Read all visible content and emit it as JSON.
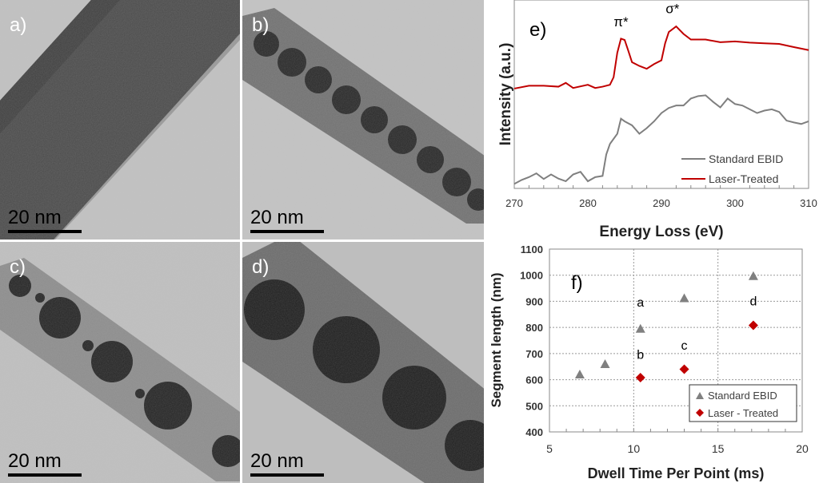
{
  "panels": [
    {
      "label": "a)",
      "scale_bar": "20 nm"
    },
    {
      "label": "b)",
      "scale_bar": "20 nm"
    },
    {
      "label": "c)",
      "scale_bar": "20 nm"
    },
    {
      "label": "d)",
      "scale_bar": "20 nm"
    }
  ],
  "chart_data": [
    {
      "type": "line",
      "panel_label": "e)",
      "xlabel": "Energy Loss (eV)",
      "ylabel": "Intensity (a.u.)",
      "xlim": [
        270,
        310
      ],
      "ylim": [
        0,
        100
      ],
      "xticks": [
        "270",
        "280",
        "290",
        "300",
        "310"
      ],
      "annotations": [
        {
          "text": "π*",
          "x": 284.5,
          "y": 86
        },
        {
          "text": "σ*",
          "x": 291.5,
          "y": 93
        }
      ],
      "legend_position": "bottom-right",
      "series": [
        {
          "name": "Standard EBID",
          "color": "#7f7f7f",
          "x": [
            270,
            271,
            272,
            273,
            274,
            275,
            276,
            277,
            278,
            279,
            280,
            281,
            282,
            282.5,
            283,
            284,
            284.5,
            285,
            286,
            287,
            288,
            289,
            290,
            291,
            292,
            293,
            294,
            295,
            296,
            297,
            298,
            299,
            300,
            301,
            302,
            303,
            304,
            305,
            306,
            307,
            308,
            309,
            310
          ],
          "y": [
            2.4,
            4.5,
            6,
            8,
            5,
            7.4,
            5.2,
            3.8,
            7.4,
            8.8,
            3.8,
            6,
            6.6,
            18,
            23.6,
            29,
            37,
            35.6,
            33.5,
            29,
            32,
            35.6,
            40,
            42.7,
            44,
            44,
            47.7,
            49,
            49.4,
            46,
            43,
            47.7,
            44.8,
            44,
            42,
            40,
            41.3,
            42,
            40.6,
            36,
            35,
            34.2,
            35.6
          ]
        },
        {
          "name": "Laser-Treated",
          "color": "#c00000",
          "x": [
            270,
            272,
            274,
            276,
            277,
            278,
            280,
            281,
            282,
            283,
            283.5,
            284,
            284.5,
            285,
            285.5,
            286,
            287,
            288,
            289,
            290,
            290.5,
            291,
            292,
            293,
            294,
            296,
            298,
            300,
            302,
            304,
            306,
            308,
            310
          ],
          "y": [
            53,
            54.5,
            54.5,
            54,
            56,
            53.3,
            55,
            53.3,
            54,
            55,
            59,
            72,
            79.5,
            78.8,
            73,
            67,
            65,
            63.5,
            66,
            68,
            77,
            83,
            86,
            82,
            79,
            79,
            77.6,
            78,
            77.4,
            77,
            76.7,
            75,
            73.4
          ]
        }
      ]
    },
    {
      "type": "scatter",
      "panel_label": "f)",
      "xlabel": "Dwell Time Per Point (ms)",
      "ylabel": "Segment length (nm)",
      "xlim": [
        5,
        20
      ],
      "ylim": [
        400,
        1100
      ],
      "xticks": [
        "5",
        "10",
        "15",
        "20"
      ],
      "yticks": [
        "400",
        "500",
        "600",
        "700",
        "800",
        "900",
        "1000",
        "1100"
      ],
      "grid": true,
      "legend_position": "bottom-right",
      "annotations": [
        {
          "text": "a",
          "x": 10.4,
          "y": 880
        },
        {
          "text": "b",
          "x": 10.4,
          "y": 680
        },
        {
          "text": "c",
          "x": 13.0,
          "y": 715
        },
        {
          "text": "d",
          "x": 17.1,
          "y": 885
        }
      ],
      "series": [
        {
          "name": "Standard EBID",
          "marker": "triangle",
          "color": "#808080",
          "x": [
            6.8,
            8.3,
            10.4,
            13.0,
            17.1
          ],
          "y": [
            620,
            660,
            795,
            912,
            997
          ]
        },
        {
          "name": "Laser - Treated",
          "marker": "diamond",
          "color": "#c00000",
          "x": [
            10.4,
            13.0,
            17.1
          ],
          "y": [
            608,
            640,
            808
          ]
        }
      ]
    }
  ]
}
